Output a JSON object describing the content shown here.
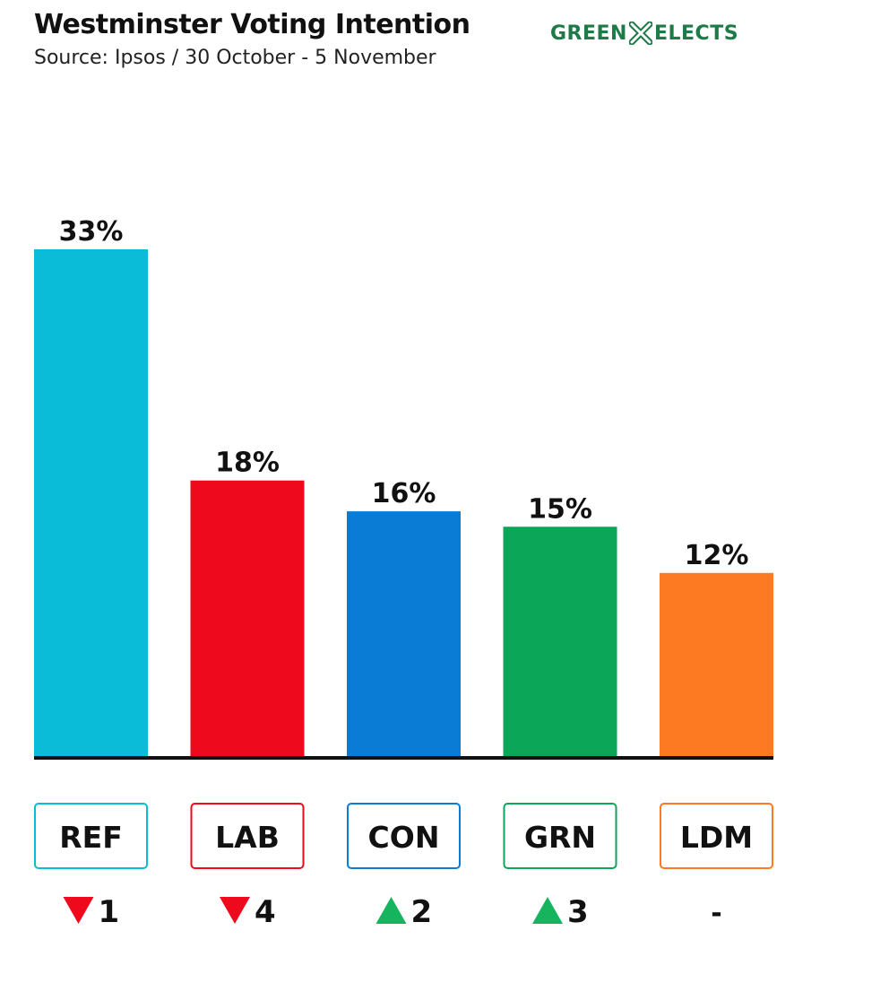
{
  "title": "Westminster Voting Intention",
  "subtitle": "Source: Ipsos / 30 October - 5 November",
  "brand": {
    "left": "GREEN",
    "right": "ELECTS",
    "color": "#1e7a46",
    "icon": "cross-icon"
  },
  "chart_data": {
    "type": "bar",
    "categories": [
      "REF",
      "LAB",
      "CON",
      "GRN",
      "LDM"
    ],
    "values": [
      33,
      18,
      16,
      15,
      12
    ],
    "value_labels": [
      "33%",
      "18%",
      "16%",
      "15%",
      "12%"
    ],
    "colors": [
      "#0abcd8",
      "#ee0a1c",
      "#0a7cd6",
      "#0ca658",
      "#fd7a22"
    ],
    "changes": [
      {
        "direction": "down",
        "value": "1"
      },
      {
        "direction": "down",
        "value": "4"
      },
      {
        "direction": "up",
        "value": "2"
      },
      {
        "direction": "up",
        "value": "3"
      },
      {
        "direction": "none",
        "value": "-"
      }
    ],
    "change_colors": {
      "up": "#16b45e",
      "down": "#ee0a1c"
    },
    "ylim": [
      0,
      33
    ]
  }
}
